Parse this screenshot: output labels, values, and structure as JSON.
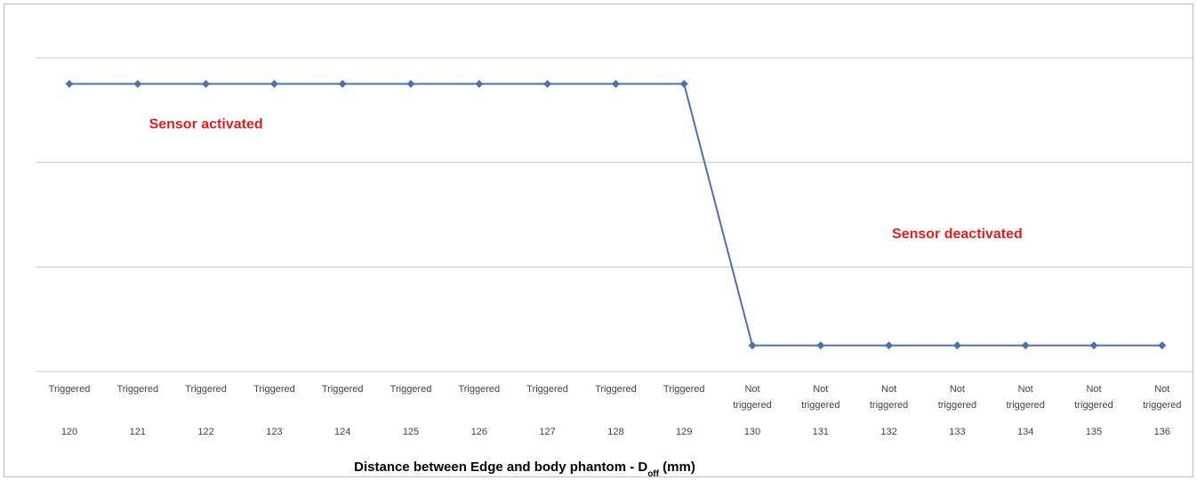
{
  "chart_data": {
    "type": "line",
    "title": "",
    "xlabel": "Distance between Edge  and body phantom  - D",
    "xlabel_subscript": "off",
    "xlabel_suffix": " (mm)",
    "ylabel": "",
    "categories": [
      "120",
      "121",
      "122",
      "123",
      "124",
      "125",
      "126",
      "127",
      "128",
      "129",
      "130",
      "131",
      "132",
      "133",
      "134",
      "135",
      "136"
    ],
    "state_labels": [
      [
        "Triggered"
      ],
      [
        "Triggered"
      ],
      [
        "Triggered"
      ],
      [
        "Triggered"
      ],
      [
        "Triggered"
      ],
      [
        "Triggered"
      ],
      [
        "Triggered"
      ],
      [
        "Triggered"
      ],
      [
        "Triggered"
      ],
      [
        "Triggered"
      ],
      [
        "Not",
        "triggered"
      ],
      [
        "Not",
        "triggered"
      ],
      [
        "Not",
        "triggered"
      ],
      [
        "Not",
        "triggered"
      ],
      [
        "Not",
        "triggered"
      ],
      [
        "Not",
        "triggered"
      ],
      [
        "Not",
        "triggered"
      ]
    ],
    "series": [
      {
        "values": [
          1,
          1,
          1,
          1,
          1,
          1,
          1,
          1,
          1,
          1,
          0,
          0,
          0,
          0,
          0,
          0,
          0
        ],
        "color": "#4a72b0"
      }
    ],
    "ylim": [
      -0.1,
      1.1
    ],
    "grid": true,
    "annotations": [
      {
        "text": "Sensor activated",
        "x_index": 2.0,
        "y": 0.83
      },
      {
        "text": "Sensor deactivated",
        "x_index": 13.0,
        "y": 0.41
      }
    ],
    "annotation_color": "#e02020",
    "gridline_color": "#c8c8c8"
  }
}
